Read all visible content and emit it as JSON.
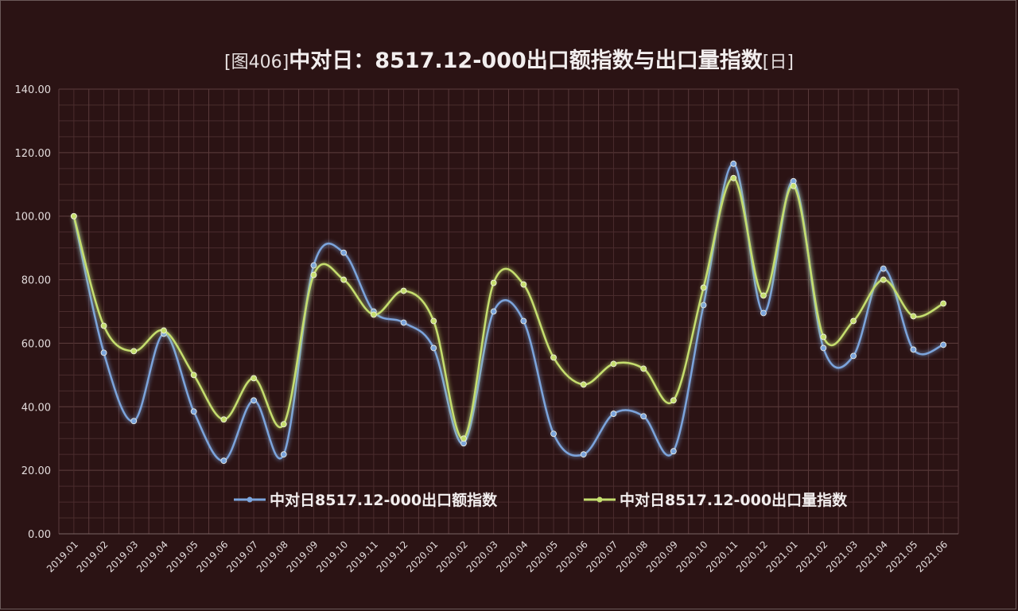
{
  "chart_data": {
    "type": "line",
    "title_prefix": "[图406]",
    "title": "中对日：8517.12-000出口额指数与出口量指数",
    "title_suffix": "[日]",
    "xlabel": "",
    "ylabel": "",
    "ylim": [
      0,
      140
    ],
    "y_ticks": [
      "0.00",
      "20.00",
      "40.00",
      "60.00",
      "80.00",
      "100.00",
      "120.00",
      "140.00"
    ],
    "grid": true,
    "legend_position": "bottom-inside",
    "categories": [
      "2019.01",
      "2019.02",
      "2019.03",
      "2019.04",
      "2019.05",
      "2019.06",
      "2019.07",
      "2019.08",
      "2019.09",
      "2019.10",
      "2019.11",
      "2019.12",
      "2020.01",
      "2020.02",
      "2020.03",
      "2020.04",
      "2020.05",
      "2020.06",
      "2020.07",
      "2020.08",
      "2020.09",
      "2020.10",
      "2020.11",
      "2020.12",
      "2021.01",
      "2021.02",
      "2021.03",
      "2021.04",
      "2021.05",
      "2021.06"
    ],
    "series": [
      {
        "name": "中对日8517.12-000出口额指数",
        "color": "#7ba4dc",
        "values": [
          100.0,
          57.0,
          35.5,
          63.0,
          38.5,
          23.0,
          42.0,
          25.0,
          84.5,
          88.5,
          70.0,
          66.5,
          58.5,
          28.5,
          70.0,
          67.0,
          31.5,
          25.0,
          37.8,
          37.0,
          26.0,
          72.0,
          116.5,
          69.5,
          111.0,
          58.5,
          56.0,
          83.5,
          58.0,
          59.5
        ]
      },
      {
        "name": "中对日8517.12-000出口量指数",
        "color": "#c5de6e",
        "values": [
          100.0,
          65.5,
          57.5,
          64.0,
          50.0,
          36.0,
          49.0,
          34.5,
          81.5,
          80.0,
          69.0,
          76.5,
          67.0,
          30.0,
          79.0,
          78.5,
          55.5,
          47.0,
          53.5,
          52.0,
          42.0,
          77.5,
          112.0,
          75.0,
          109.5,
          62.0,
          67.0,
          80.0,
          68.5,
          72.5
        ]
      }
    ]
  }
}
